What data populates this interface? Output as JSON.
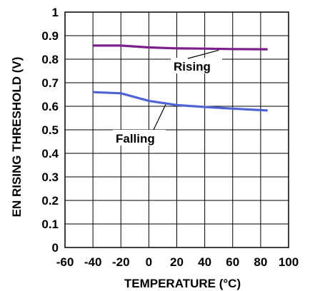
{
  "chart_data": {
    "type": "line",
    "title": "",
    "xlabel": "TEMPERATURE (°C)",
    "ylabel": "EN RISING THRESHOLD (V)",
    "xlim": [
      -60,
      100
    ],
    "ylim": [
      0,
      1
    ],
    "grid": true,
    "x_ticks": [
      "-60",
      "-40",
      "-20",
      "0",
      "20",
      "40",
      "60",
      "80",
      "100"
    ],
    "y_ticks": [
      "0",
      "0.1",
      "0.2",
      "0.3",
      "0.4",
      "0.5",
      "0.6",
      "0.7",
      "0.8",
      "0.9",
      "1"
    ],
    "series": [
      {
        "name": "Rising",
        "color": "#7b1f8c",
        "x": [
          -40,
          -20,
          0,
          20,
          40,
          60,
          85
        ],
        "y": [
          0.858,
          0.858,
          0.85,
          0.846,
          0.845,
          0.843,
          0.842
        ]
      },
      {
        "name": "Falling",
        "color": "#4f63d6",
        "x": [
          -40,
          -20,
          0,
          20,
          40,
          60,
          85
        ],
        "y": [
          0.66,
          0.655,
          0.623,
          0.605,
          0.597,
          0.59,
          0.582
        ]
      }
    ],
    "annotations": [
      {
        "text": "Rising",
        "series": "Rising"
      },
      {
        "text": "Falling",
        "series": "Falling"
      }
    ]
  }
}
